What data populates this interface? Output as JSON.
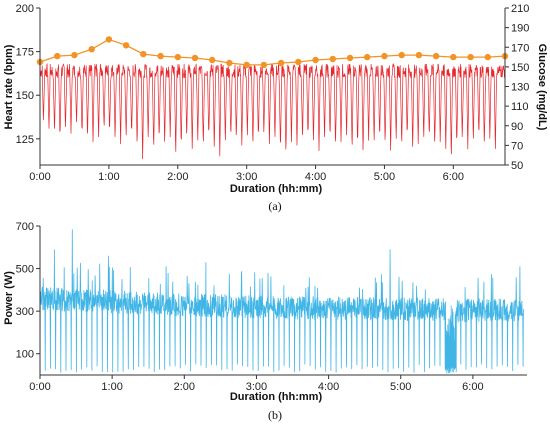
{
  "chart_data": [
    {
      "type": "line",
      "caption": "(a)",
      "xlabel": "Duration (hh:mm)",
      "ylabel": "Heart rate (bpm)",
      "y2label": "Glucose (mg/dL)",
      "xlim": [
        0,
        6.75
      ],
      "ylim": [
        110,
        200
      ],
      "y2lim": [
        50,
        210
      ],
      "x_ticks": [
        "0:00",
        "1:00",
        "2:00",
        "3:00",
        "4:00",
        "5:00",
        "6:00"
      ],
      "x_tick_values": [
        0,
        1,
        2,
        3,
        4,
        5,
        6
      ],
      "y_ticks": [
        125,
        150,
        175,
        200
      ],
      "y2_ticks": [
        50,
        70,
        90,
        110,
        130,
        150,
        170,
        190,
        210
      ],
      "grid": false,
      "colors": {
        "heart_rate": "#e8262c",
        "glucose": "#f39325"
      },
      "series": [
        {
          "key": "glucose",
          "axis": "right",
          "style": "line-markers",
          "x": [
            0.0,
            0.25,
            0.5,
            0.75,
            1.0,
            1.25,
            1.5,
            1.75,
            2.0,
            2.25,
            2.5,
            2.75,
            3.0,
            3.25,
            3.5,
            3.75,
            4.0,
            4.25,
            4.5,
            4.75,
            5.0,
            5.25,
            5.5,
            5.75,
            6.0,
            6.25,
            6.5,
            6.75
          ],
          "values": [
            155,
            161,
            162,
            168,
            178,
            172,
            163,
            161,
            160,
            159,
            157,
            154,
            152,
            152,
            154,
            155,
            157,
            158,
            159,
            160,
            161,
            162,
            162,
            161,
            160,
            160,
            160,
            161
          ]
        },
        {
          "key": "heart_rate",
          "axis": "left",
          "style": "line",
          "baseline_range": [
            160,
            168
          ],
          "dip_x": [
            0.05,
            0.13,
            0.21,
            0.29,
            0.37,
            0.45,
            0.53,
            0.61,
            0.69,
            0.77,
            0.85,
            0.93,
            1.01,
            1.09,
            1.17,
            1.25,
            1.33,
            1.41,
            1.49,
            1.57,
            1.65,
            1.73,
            1.81,
            1.89,
            1.97,
            2.05,
            2.13,
            2.21,
            2.29,
            2.37,
            2.45,
            2.53,
            2.61,
            2.69,
            2.77,
            2.85,
            2.93,
            3.01,
            3.09,
            3.17,
            3.25,
            3.33,
            3.41,
            3.49,
            3.57,
            3.65,
            3.73,
            3.81,
            3.89,
            3.97,
            4.05,
            4.13,
            4.21,
            4.29,
            4.37,
            4.45,
            4.53,
            4.61,
            4.69,
            4.77,
            4.85,
            4.93,
            5.01,
            5.09,
            5.17,
            5.25,
            5.33,
            5.41,
            5.49,
            5.57,
            5.65,
            5.73,
            5.81,
            5.89,
            5.97,
            6.05,
            6.13,
            6.21,
            6.29,
            6.37,
            6.45,
            6.53,
            6.61
          ],
          "dip_min": [
            135,
            130,
            128,
            125,
            130,
            128,
            133,
            127,
            125,
            122,
            125,
            130,
            128,
            124,
            122,
            125,
            127,
            120,
            112,
            125,
            118,
            124,
            121,
            126,
            115,
            120,
            125,
            118,
            123,
            120,
            126,
            118,
            115,
            122,
            125,
            124,
            120,
            126,
            120,
            125,
            127,
            122,
            124,
            118,
            115,
            122,
            120,
            124,
            126,
            122,
            118,
            124,
            125,
            120,
            122,
            126,
            118,
            121,
            116,
            124,
            122,
            125,
            121,
            117,
            124,
            120,
            126,
            118,
            122,
            124,
            125,
            120,
            122,
            118,
            112,
            121,
            124,
            119,
            123,
            126,
            120,
            124,
            118
          ]
        }
      ]
    },
    {
      "type": "line",
      "caption": "(b)",
      "xlabel": "Duration (hh:mm)",
      "ylabel": "Power (W)",
      "xlim": [
        0,
        6.75
      ],
      "ylim": [
        0,
        700
      ],
      "x_ticks": [
        "0:00",
        "1:00",
        "2:00",
        "3:00",
        "4:00",
        "5:00",
        "6:00"
      ],
      "x_tick_values": [
        0,
        1,
        2,
        3,
        4,
        5,
        6
      ],
      "y_ticks": [
        100,
        300,
        500,
        700
      ],
      "grid": false,
      "colors": {
        "power": "#41b6e6"
      },
      "series": [
        {
          "key": "power",
          "style": "line",
          "baseline_x": [
            0.0,
            0.5,
            1.0,
            1.5,
            2.0,
            2.5,
            3.0,
            3.5,
            4.0,
            4.5,
            5.0,
            5.5,
            5.6,
            5.75,
            6.0,
            6.5,
            6.7
          ],
          "baseline": [
            360,
            350,
            345,
            335,
            330,
            325,
            320,
            315,
            315,
            312,
            310,
            305,
            305,
            300,
            305,
            305,
            300
          ],
          "x_end": 6.7,
          "drop_segment": [
            5.62,
            5.77
          ],
          "spikes_x": [
            0.2,
            0.45,
            0.95,
            1.75,
            2.3,
            4.85,
            6.65
          ],
          "spikes": [
            590,
            685,
            560,
            510,
            530,
            590,
            510
          ]
        }
      ]
    }
  ]
}
